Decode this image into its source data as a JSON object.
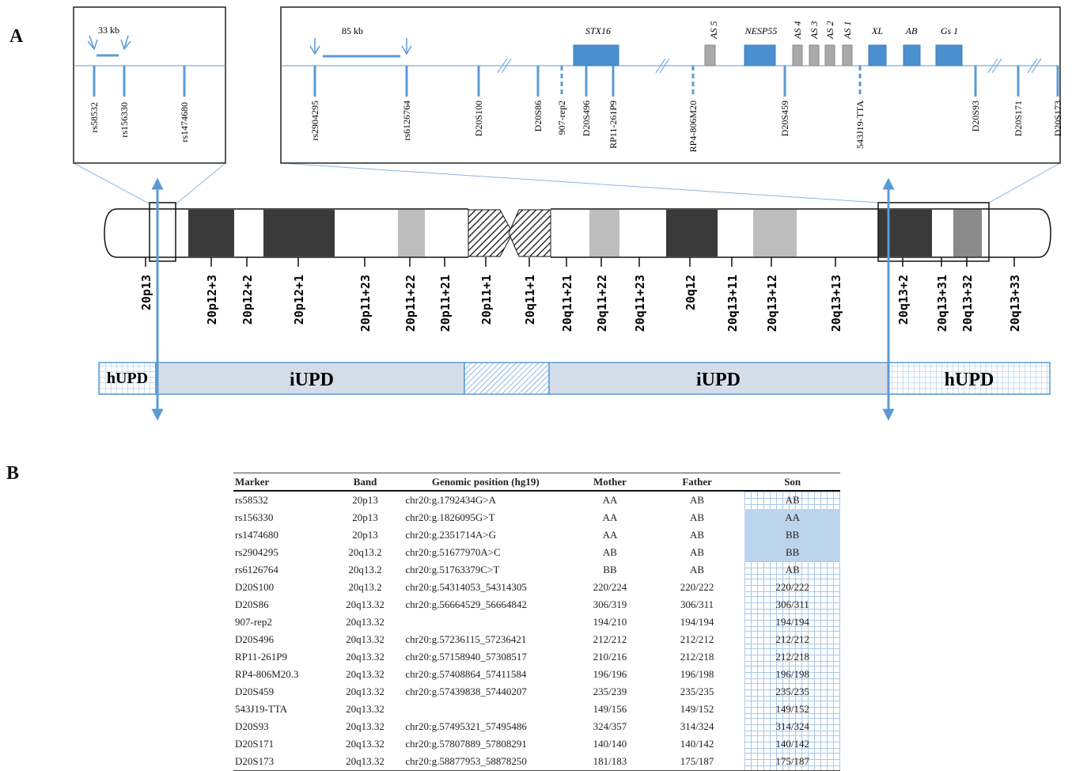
{
  "panel_labels": {
    "a": "A",
    "b": "B"
  },
  "colors": {
    "gene_box": "#4a90d0",
    "antisense_box": "#a9a9a9",
    "marker_line": "#5b9bd5",
    "dark_band": "#3a3a3a",
    "gray_band": "#bdbdbd",
    "upd_fill": "#d5dde8",
    "son_grid": "#a9c8e6",
    "son_highlight": "#bcd5ee"
  },
  "left_inset": {
    "scale_label": "33 kb",
    "markers": [
      "rs58532",
      "rs156330",
      "rs1474680"
    ]
  },
  "right_inset": {
    "scale_label": "85 kb",
    "genes": [
      "STX16",
      "AS 5",
      "NESP55",
      "AS 4",
      "AS 3",
      "AS 2",
      "AS 1",
      "XL",
      "AB",
      "Gs 1"
    ],
    "markers": [
      "rs2904295",
      "rs6126764",
      "D20S100",
      "D20S86",
      "907-rep2",
      "D20S496",
      "RP11-261P9",
      "RP4-806M20",
      "D20S459",
      "543J19-TTA",
      "D20S93",
      "D20S171",
      "D20S173"
    ]
  },
  "bands": [
    "20p13",
    "20p12+3",
    "20p12+2",
    "20p12+1",
    "20p11+23",
    "20p11+22",
    "20p11+21",
    "20p11+1",
    "20q11+1",
    "20q11+21",
    "20q11+22",
    "20q11+23",
    "20q12",
    "20q13+11",
    "20q13+12",
    "20q13+13",
    "20q13+2",
    "20q13+31",
    "20q13+32",
    "20q13+33"
  ],
  "upd_segments": [
    "hUPD",
    "iUPD",
    "iUPD",
    "hUPD"
  ],
  "table": {
    "headers": [
      "Marker",
      "Band",
      "Genomic position (hg19)",
      "Mother",
      "Father",
      "Son"
    ],
    "rows": [
      [
        "rs58532",
        "20p13",
        "chr20:g.1792434G>A",
        "AA",
        "AB",
        "AB"
      ],
      [
        "rs156330",
        "20p13",
        "chr20:g.1826095G>T",
        "AA",
        "AB",
        "AA"
      ],
      [
        "rs1474680",
        "20p13",
        "chr20:g.2351714A>G",
        "AA",
        "AB",
        "BB"
      ],
      [
        "rs2904295",
        "20q13.2",
        "chr20:g.51677970A>C",
        "AB",
        "AB",
        "BB"
      ],
      [
        "rs6126764",
        "20q13.2",
        "chr20:g.51763379C>T",
        "BB",
        "AB",
        "AB"
      ],
      [
        "D20S100",
        "20q13.2",
        "chr20:g.54314053_54314305",
        "220/224",
        "220/222",
        "220/222"
      ],
      [
        "D20S86",
        "20q13.32",
        "chr20:g.56664529_56664842",
        "306/319",
        "306/311",
        "306/311"
      ],
      [
        "907-rep2",
        "20q13.32",
        "",
        "194/210",
        "194/194",
        "194/194"
      ],
      [
        "D20S496",
        "20q13.32",
        "chr20:g.57236115_57236421",
        "212/212",
        "212/212",
        "212/212"
      ],
      [
        "RP11-261P9",
        "20q13.32",
        "chr20:g.57158940_57308517",
        "210/216",
        "212/218",
        "212/218"
      ],
      [
        "RP4-806M20.3",
        "20q13.32",
        "chr20:g.57408864_57411584",
        "196/196",
        "196/198",
        "196/198"
      ],
      [
        "D20S459",
        "20q13.32",
        "chr20:g.57439838_57440207",
        "235/239",
        "235/235",
        "235/235"
      ],
      [
        "543J19-TTA",
        "20q13.32",
        "",
        "149/156",
        "149/152",
        "149/152"
      ],
      [
        "D20S93",
        "20q13.32",
        "chr20:g.57495321_57495486",
        "324/357",
        "314/324",
        "314/324"
      ],
      [
        "D20S171",
        "20q13.32",
        "chr20:g.57807889_57808291",
        "140/140",
        "140/142",
        "140/142"
      ],
      [
        "D20S173",
        "20q13.32",
        "chr20:g.58877953_58878250",
        "181/183",
        "175/187",
        "175/187"
      ]
    ]
  }
}
